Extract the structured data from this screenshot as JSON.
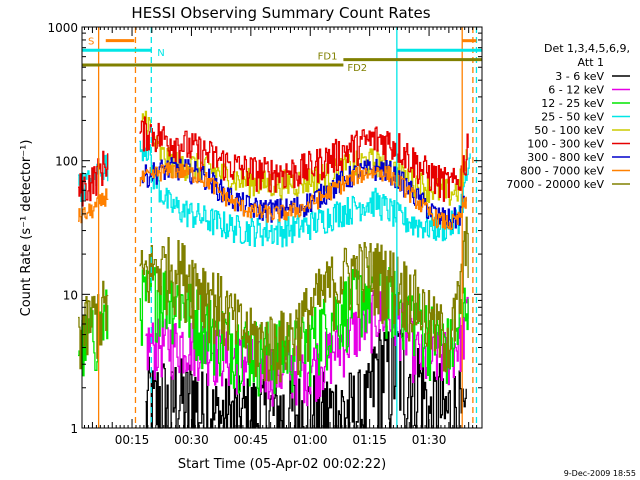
{
  "chart_data": {
    "type": "line",
    "title": "HESSI Observing Summary Count Rates",
    "xlabel": "Start Time (05-Apr-02 00:02:22)",
    "ylabel": "Count Rate (s⁻¹ detector⁻¹)",
    "y_scale": "log",
    "ylim": [
      1,
      1000
    ],
    "xlim_minutes": [
      0,
      101
    ],
    "x_ticks": [
      "00:15",
      "00:30",
      "00:45",
      "01:00",
      "01:15",
      "01:30"
    ],
    "y_ticks": [
      "1",
      "10",
      "100",
      "1000"
    ],
    "legend": {
      "position": "right",
      "header": [
        "Det 1,3,4,5,6,9,",
        "Att 1"
      ],
      "entries": [
        {
          "label": "3 - 6 keV",
          "color": "#000000"
        },
        {
          "label": "6 - 12 keV",
          "color": "#e600e6"
        },
        {
          "label": "12 - 25 keV",
          "color": "#00e600"
        },
        {
          "label": "25 - 50 keV",
          "color": "#00e6e6"
        },
        {
          "label": "50 - 100 keV",
          "color": "#cccc00"
        },
        {
          "label": "100 - 300 keV",
          "color": "#e60000"
        },
        {
          "label": "300 - 800 keV",
          "color": "#0000cc"
        },
        {
          "label": "800 - 7000 keV",
          "color": "#ff8000"
        },
        {
          "label": "7000 - 20000 keV",
          "color": "#808000"
        }
      ]
    },
    "series": [
      {
        "name": "3 - 6 keV",
        "color": "#000000",
        "band": 1.0,
        "points": [
          [
            16,
            1.2
          ],
          [
            17,
            1.9
          ],
          [
            18,
            1.4
          ],
          [
            20,
            1.9
          ],
          [
            22,
            1.3
          ],
          [
            24,
            1.9
          ],
          [
            26,
            1.5
          ],
          [
            28,
            1.9
          ],
          [
            30,
            1.3
          ],
          [
            31.5,
            1.9
          ],
          [
            33,
            1.2
          ],
          [
            72,
            1.4
          ],
          [
            74,
            2.8
          ],
          [
            76,
            3.2
          ],
          [
            78,
            2.8
          ],
          [
            80,
            3.6
          ],
          [
            82,
            2.4
          ],
          [
            84,
            2.8
          ],
          [
            86,
            2.1
          ],
          [
            87,
            1.4
          ],
          [
            88,
            1.1
          ],
          [
            90,
            1.8
          ],
          [
            91,
            1.2
          ],
          [
            95,
            1.5
          ],
          [
            96,
            1.0
          ],
          [
            97,
            1.0
          ]
        ]
      },
      {
        "name": "6 - 12 keV",
        "color": "#e600e6",
        "band": 0.5,
        "points": [
          [
            16,
            4.3
          ],
          [
            22,
            4.4
          ],
          [
            27,
            4.5
          ],
          [
            30,
            4.4
          ],
          [
            32,
            4.0
          ],
          [
            35,
            3.7
          ],
          [
            40,
            3.3
          ],
          [
            45,
            3.0
          ],
          [
            50,
            2.8
          ],
          [
            55,
            2.8
          ],
          [
            58,
            3.0
          ],
          [
            62,
            3.6
          ],
          [
            65,
            4.3
          ],
          [
            68,
            5.2
          ],
          [
            70,
            6.0
          ],
          [
            73,
            7.0
          ],
          [
            75,
            7.5
          ],
          [
            77,
            7.2
          ],
          [
            80,
            6.5
          ],
          [
            83,
            4.5
          ],
          [
            86,
            3.3
          ],
          [
            90,
            3.5
          ],
          [
            93,
            3.8
          ],
          [
            96,
            5.0
          ],
          [
            97.5,
            8.0
          ]
        ]
      },
      {
        "name": "12 - 25 keV",
        "color": "#00e600",
        "band": 0.6,
        "points": [
          [
            -1,
            4.3
          ],
          [
            2,
            5.0
          ],
          [
            5,
            6.0
          ],
          [
            6,
            7.0
          ],
          [
            16,
            10.0
          ],
          [
            19,
            11.0
          ],
          [
            21,
            10.5
          ],
          [
            24,
            9.5
          ],
          [
            27,
            8.0
          ],
          [
            30,
            6.8
          ],
          [
            35,
            5.3
          ],
          [
            40,
            4.5
          ],
          [
            45,
            4.0
          ],
          [
            50,
            4.0
          ],
          [
            55,
            4.2
          ],
          [
            58,
            5.0
          ],
          [
            62,
            6.5
          ],
          [
            65,
            8.0
          ],
          [
            68,
            9.5
          ],
          [
            71,
            10.5
          ],
          [
            74,
            10.8
          ],
          [
            77,
            10.3
          ],
          [
            80,
            9.3
          ],
          [
            83,
            7.8
          ],
          [
            86,
            6.2
          ],
          [
            90,
            4.8
          ],
          [
            93,
            4.2
          ],
          [
            95,
            5.5
          ],
          [
            97.5,
            11.0
          ]
        ]
      },
      {
        "name": "25 - 50 keV",
        "color": "#00e6e6",
        "band": 0.25,
        "points": [
          [
            -1,
            65
          ],
          [
            1,
            68
          ],
          [
            3,
            74
          ],
          [
            5,
            90
          ],
          [
            6,
            95
          ],
          [
            7.5,
            85
          ],
          [
            14.5,
            115
          ],
          [
            15.5,
            140
          ],
          [
            16.5,
            125
          ],
          [
            18,
            78
          ],
          [
            20,
            58
          ],
          [
            22,
            47
          ],
          [
            25,
            43
          ],
          [
            28,
            40
          ],
          [
            31,
            37
          ],
          [
            35,
            34
          ],
          [
            40,
            31
          ],
          [
            45,
            30
          ],
          [
            50,
            30
          ],
          [
            55,
            32
          ],
          [
            58,
            34
          ],
          [
            62,
            38
          ],
          [
            65,
            42
          ],
          [
            68,
            44
          ],
          [
            71,
            48
          ],
          [
            74,
            50
          ],
          [
            77,
            44
          ],
          [
            80,
            38
          ],
          [
            83,
            35
          ],
          [
            86,
            33
          ],
          [
            90,
            32
          ],
          [
            93,
            33
          ],
          [
            95,
            38
          ],
          [
            97,
            75
          ],
          [
            98,
            95
          ]
        ]
      },
      {
        "name": "50 - 100 keV",
        "color": "#cccc00",
        "band": 0.25,
        "points": [
          [
            15,
            180
          ],
          [
            15.5,
            220
          ],
          [
            16.5,
            205
          ],
          [
            18,
            135
          ],
          [
            20,
            110
          ],
          [
            22,
            100
          ],
          [
            25,
            95
          ],
          [
            28,
            92
          ],
          [
            31,
            88
          ],
          [
            35,
            80
          ],
          [
            40,
            72
          ],
          [
            45,
            68
          ],
          [
            50,
            68
          ],
          [
            55,
            70
          ],
          [
            58,
            74
          ],
          [
            62,
            80
          ],
          [
            65,
            86
          ],
          [
            68,
            92
          ],
          [
            71,
            98
          ],
          [
            74,
            100
          ],
          [
            77,
            92
          ],
          [
            80,
            80
          ],
          [
            83,
            72
          ],
          [
            86,
            66
          ],
          [
            90,
            60
          ],
          [
            93,
            58
          ],
          [
            95,
            62
          ],
          [
            97,
            100
          ]
        ]
      },
      {
        "name": "100 - 300 keV",
        "color": "#e60000",
        "band": 0.3,
        "points": [
          [
            -1,
            62
          ],
          [
            1,
            65
          ],
          [
            3,
            74
          ],
          [
            5,
            90
          ],
          [
            6,
            100
          ],
          [
            15,
            160
          ],
          [
            16.5,
            168
          ],
          [
            18,
            160
          ],
          [
            20,
            150
          ],
          [
            22,
            145
          ],
          [
            25,
            135
          ],
          [
            28,
            125
          ],
          [
            31,
            115
          ],
          [
            35,
            100
          ],
          [
            40,
            88
          ],
          [
            45,
            82
          ],
          [
            50,
            82
          ],
          [
            55,
            85
          ],
          [
            58,
            92
          ],
          [
            62,
            104
          ],
          [
            65,
            115
          ],
          [
            68,
            125
          ],
          [
            71,
            138
          ],
          [
            74,
            146
          ],
          [
            77,
            142
          ],
          [
            80,
            128
          ],
          [
            83,
            105
          ],
          [
            86,
            86
          ],
          [
            90,
            72
          ],
          [
            93,
            66
          ],
          [
            95,
            70
          ],
          [
            97,
            110
          ],
          [
            97.5,
            170
          ]
        ]
      },
      {
        "name": "300 - 800 keV",
        "color": "#0000cc",
        "band": 0.2,
        "points": [
          [
            15,
            75
          ],
          [
            17,
            80
          ],
          [
            20,
            86
          ],
          [
            23,
            88
          ],
          [
            26,
            86
          ],
          [
            29,
            82
          ],
          [
            32,
            73
          ],
          [
            35,
            60
          ],
          [
            38,
            52
          ],
          [
            41,
            47
          ],
          [
            44,
            44
          ],
          [
            48,
            43
          ],
          [
            52,
            44
          ],
          [
            56,
            47
          ],
          [
            60,
            55
          ],
          [
            63,
            63
          ],
          [
            66,
            72
          ],
          [
            69,
            80
          ],
          [
            72,
            85
          ],
          [
            75,
            88
          ],
          [
            78,
            82
          ],
          [
            81,
            68
          ],
          [
            84,
            55
          ],
          [
            87,
            45
          ],
          [
            90,
            38
          ],
          [
            93,
            36
          ],
          [
            95,
            38
          ],
          [
            97,
            55
          ]
        ]
      },
      {
        "name": "800 - 7000 keV",
        "color": "#ff8000",
        "band": 0.15,
        "points": [
          [
            -1,
            38
          ],
          [
            1,
            40
          ],
          [
            3,
            44
          ],
          [
            5,
            50
          ],
          [
            6,
            55
          ],
          [
            15,
            72
          ],
          [
            17,
            77
          ],
          [
            20,
            83
          ],
          [
            23,
            85
          ],
          [
            26,
            83
          ],
          [
            29,
            78
          ],
          [
            32,
            70
          ],
          [
            35,
            57
          ],
          [
            38,
            49
          ],
          [
            41,
            44
          ],
          [
            44,
            41
          ],
          [
            48,
            40
          ],
          [
            52,
            41
          ],
          [
            56,
            45
          ],
          [
            60,
            52
          ],
          [
            63,
            60
          ],
          [
            66,
            68
          ],
          [
            69,
            77
          ],
          [
            72,
            82
          ],
          [
            75,
            84
          ],
          [
            78,
            78
          ],
          [
            81,
            65
          ],
          [
            84,
            52
          ],
          [
            87,
            42
          ],
          [
            90,
            36
          ],
          [
            93,
            34
          ],
          [
            95,
            36
          ],
          [
            97,
            50
          ]
        ]
      },
      {
        "name": "7000 - 20000 keV",
        "color": "#808000",
        "band": 0.6,
        "points": [
          [
            -1,
            5.5
          ],
          [
            1,
            6.0
          ],
          [
            3,
            7.0
          ],
          [
            15,
            14.0
          ],
          [
            18,
            16.0
          ],
          [
            21,
            17.0
          ],
          [
            24,
            16.5
          ],
          [
            27,
            14.5
          ],
          [
            30,
            12.5
          ],
          [
            33,
            10.0
          ],
          [
            36,
            8.0
          ],
          [
            39,
            6.0
          ],
          [
            42,
            5.0
          ],
          [
            45,
            4.6
          ],
          [
            48,
            4.6
          ],
          [
            51,
            4.8
          ],
          [
            54,
            5.8
          ],
          [
            57,
            7.5
          ],
          [
            60,
            10.0
          ],
          [
            63,
            12.5
          ],
          [
            66,
            14.5
          ],
          [
            69,
            15.5
          ],
          [
            72,
            16.0
          ],
          [
            75,
            15.5
          ],
          [
            78,
            14.0
          ],
          [
            81,
            12.0
          ],
          [
            84,
            9.5
          ],
          [
            87,
            7.0
          ],
          [
            90,
            5.5
          ],
          [
            93,
            5.0
          ],
          [
            95,
            9.0
          ],
          [
            96.5,
            20
          ],
          [
            97.5,
            30
          ]
        ]
      }
    ],
    "vlines": [
      {
        "x": 4.2,
        "color": "#ff8000",
        "dash": false
      },
      {
        "x": 13.5,
        "color": "#ff8000",
        "dash": true
      },
      {
        "x": 17.5,
        "color": "#00e6e6",
        "dash": true
      },
      {
        "x": 79.5,
        "color": "#00e6e6",
        "dash": false
      },
      {
        "x": 96.0,
        "color": "#ff8000",
        "dash": false
      },
      {
        "x": 98.7,
        "color": "#ff8000",
        "dash": true
      },
      {
        "x": 99.6,
        "color": "#00e6e6",
        "dash": true
      }
    ],
    "hbars": [
      {
        "x1": 6.0,
        "x2": 13.2,
        "y": 790,
        "color": "#ff8000",
        "label": "S"
      },
      {
        "x1": -1,
        "x2": 17.5,
        "y": 670,
        "color": "#00e6e6",
        "label": "N"
      },
      {
        "x1": 79.5,
        "x2": 101,
        "y": 670,
        "color": "#00e6e6",
        "label": ""
      },
      {
        "x1": 96.0,
        "x2": 99.6,
        "y": 790,
        "color": "#ff8000",
        "label": ""
      },
      {
        "x1": -1,
        "x2": 66.0,
        "y": 520,
        "color": "#808000",
        "label": ""
      },
      {
        "x1": 66.0,
        "x2": 101,
        "y": 570,
        "color": "#808000",
        "label": ""
      }
    ],
    "region_labels": [
      {
        "text": "S",
        "x": 1.5,
        "y": 790,
        "color": "#ff8000"
      },
      {
        "text": "N",
        "x": 19.0,
        "y": 650,
        "color": "#00e6e6"
      },
      {
        "text": "FD1",
        "x": 59.5,
        "y": 610,
        "color": "#808000"
      },
      {
        "text": "FD2",
        "x": 67.0,
        "y": 500,
        "color": "#808000"
      }
    ]
  },
  "footer": {
    "timestamp": "9-Dec-2009 18:55"
  }
}
